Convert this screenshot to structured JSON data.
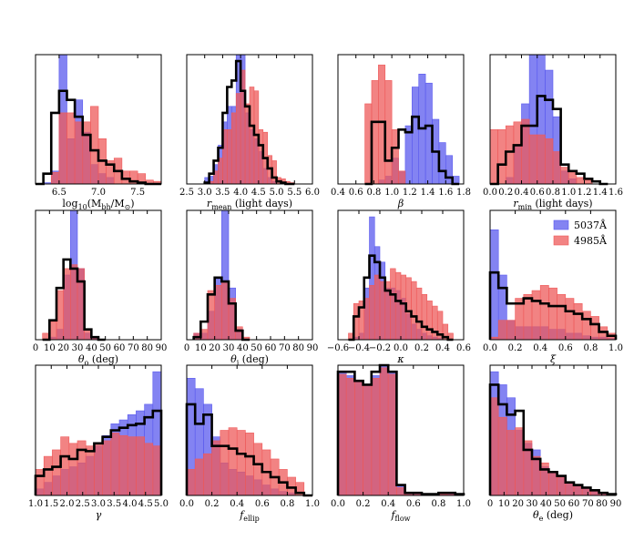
{
  "colors": {
    "series_a": "#5a5aee",
    "series_b": "#ee5a5a",
    "step": "#000000",
    "frame": "#000000"
  },
  "legend": {
    "entries": [
      {
        "name": "5037Å",
        "color": "#5a5aee"
      },
      {
        "name": "4985Å",
        "color": "#ee5a5a"
      }
    ],
    "placement": "top-right of r_min ... in row 2, column 4 panel"
  },
  "chart_data": [
    {
      "type": "bar",
      "id": "mbh",
      "xlabel_main": "log",
      "xlabel_sub": "10",
      "xlabel_rest": "(M",
      "xlabel_sub2": "bh",
      "xlabel_rest2": "/M",
      "xlabel_sub3": "⊙",
      "xlabel_end": ")",
      "xlim": [
        6.2,
        7.8
      ],
      "ticks": [
        6.5,
        7.0,
        7.5
      ],
      "tick_labels": [
        "6.5",
        "7.0",
        "7.5"
      ],
      "bin_edges": [
        6.2,
        6.3,
        6.4,
        6.5,
        6.6,
        6.7,
        6.8,
        6.9,
        7.0,
        7.1,
        7.2,
        7.3,
        7.4,
        7.5,
        7.6,
        7.7,
        7.8
      ],
      "series": [
        {
          "name": "5037Å",
          "values": [
            0,
            1,
            10,
            100,
            35,
            65,
            40,
            15,
            8,
            5,
            0,
            0,
            0,
            0,
            0,
            0
          ]
        },
        {
          "name": "4985Å",
          "values": [
            0,
            0,
            9,
            55,
            55,
            48,
            48,
            60,
            35,
            18,
            20,
            10,
            10,
            8,
            3,
            2
          ]
        }
      ],
      "step": [
        0,
        8,
        55,
        72,
        65,
        52,
        38,
        26,
        18,
        15,
        10,
        4,
        2,
        1,
        0,
        0
      ]
    },
    {
      "type": "bar",
      "id": "rmean",
      "xlabel_main": "r",
      "xlabel_sub": "mean",
      "xlabel_rest": " (light days)",
      "xlim": [
        2.5,
        6.0
      ],
      "ticks": [
        2.5,
        3.0,
        3.5,
        4.0,
        4.5,
        5.0,
        5.5,
        6.0
      ],
      "tick_labels": [
        "2.5",
        "3.0",
        "3.5",
        "4.0",
        "4.5",
        "5.0",
        "5.5",
        "6.0"
      ],
      "bin_edges": [
        3.0,
        3.125,
        3.25,
        3.375,
        3.5,
        3.625,
        3.75,
        3.875,
        4.0,
        4.125,
        4.25,
        4.375,
        4.5,
        4.625,
        4.75,
        4.875,
        5.0,
        5.125,
        5.25,
        5.375,
        5.5
      ],
      "series": [
        {
          "name": "5037Å",
          "values": [
            5,
            6,
            15,
            30,
            48,
            60,
            60,
            100,
            100,
            55,
            42,
            35,
            25,
            12,
            5,
            2,
            0,
            0,
            0,
            0
          ]
        },
        {
          "name": "4985Å",
          "values": [
            0,
            2,
            10,
            20,
            42,
            42,
            55,
            70,
            88,
            62,
            75,
            72,
            42,
            40,
            22,
            18,
            5,
            4,
            2,
            1
          ]
        }
      ],
      "step": [
        1,
        8,
        18,
        28,
        55,
        75,
        80,
        95,
        72,
        60,
        45,
        38,
        30,
        20,
        12,
        5,
        2,
        1,
        0,
        0
      ]
    },
    {
      "type": "bar",
      "id": "beta",
      "xlabel_main": "β",
      "xlim": [
        0.4,
        1.8
      ],
      "ticks": [
        0.4,
        0.6,
        0.8,
        1.0,
        1.2,
        1.4,
        1.6,
        1.8
      ],
      "tick_labels": [
        "0.4",
        "0.6",
        "0.8",
        "1.0",
        "1.2",
        "1.4",
        "1.6",
        "1.8"
      ],
      "bin_edges": [
        0.7,
        0.775,
        0.85,
        0.925,
        1.0,
        1.075,
        1.15,
        1.225,
        1.3,
        1.375,
        1.45,
        1.525,
        1.6,
        1.675,
        1.75
      ],
      "series": [
        {
          "name": "5037Å",
          "values": [
            0,
            0,
            3,
            6,
            20,
            10,
            45,
            75,
            85,
            78,
            50,
            32,
            22,
            6
          ]
        },
        {
          "name": "4985Å",
          "values": [
            62,
            80,
            92,
            80,
            42,
            10,
            0,
            0,
            0,
            0,
            0,
            0,
            0,
            0
          ]
        }
      ],
      "step": [
        0,
        48,
        48,
        18,
        28,
        42,
        40,
        52,
        43,
        45,
        25,
        10,
        5,
        0
      ]
    },
    {
      "type": "bar",
      "id": "rmin",
      "xlabel_main": "r",
      "xlabel_sub": "min",
      "xlabel_rest": " (light days)",
      "xlim": [
        0.0,
        1.6
      ],
      "ticks": [
        0.0,
        0.2,
        0.4,
        0.6,
        0.8,
        1.0,
        1.2,
        1.4,
        1.6
      ],
      "tick_labels": [
        "0.0",
        "0.2",
        "0.4",
        "0.6",
        "0.8",
        "1.0",
        "1.2",
        "1.4",
        "1.6"
      ],
      "bin_edges": [
        0.0,
        0.1,
        0.2,
        0.3,
        0.4,
        0.5,
        0.6,
        0.7,
        0.8,
        0.9,
        1.0,
        1.1,
        1.2,
        1.3,
        1.4,
        1.5
      ],
      "series": [
        {
          "name": "5037Å",
          "values": [
            0,
            0,
            5,
            30,
            62,
            100,
            100,
            88,
            52,
            10,
            4,
            0,
            0,
            0,
            0
          ]
        },
        {
          "name": "4985Å",
          "values": [
            42,
            42,
            45,
            48,
            50,
            38,
            38,
            35,
            25,
            13,
            10,
            5,
            3,
            0,
            0
          ]
        }
      ],
      "step": [
        0,
        15,
        25,
        30,
        45,
        45,
        68,
        65,
        58,
        15,
        10,
        8,
        4,
        2,
        0
      ]
    },
    {
      "type": "bar",
      "id": "theta_o",
      "xlabel_main": "θ",
      "xlabel_sub": "o",
      "xlabel_rest": " (deg)",
      "xlim": [
        0,
        90
      ],
      "ticks": [
        0,
        10,
        20,
        30,
        40,
        50,
        60,
        70,
        80,
        90
      ],
      "tick_labels": [
        "0",
        "10",
        "20",
        "30",
        "40",
        "50",
        "60",
        "70",
        "80",
        "90"
      ],
      "bin_edges": [
        5,
        10,
        15,
        20,
        25,
        30,
        35,
        40,
        45,
        50
      ],
      "series": [
        {
          "name": "5037Å",
          "values": [
            0,
            2,
            8,
            50,
            100,
            55,
            5,
            1,
            0
          ]
        },
        {
          "name": "4985Å",
          "values": [
            5,
            14,
            38,
            55,
            58,
            55,
            8,
            2,
            0
          ]
        }
      ],
      "step": [
        0,
        15,
        40,
        62,
        55,
        45,
        8,
        2,
        0
      ]
    },
    {
      "type": "bar",
      "id": "theta_i",
      "xlabel_main": "θ",
      "xlabel_sub": "i",
      "xlabel_rest": " (deg)",
      "xlim": [
        0,
        90
      ],
      "ticks": [
        0,
        10,
        20,
        30,
        40,
        50,
        60,
        70,
        80,
        90
      ],
      "tick_labels": [
        "0",
        "10",
        "20",
        "30",
        "40",
        "50",
        "60",
        "70",
        "80",
        "90"
      ],
      "bin_edges": [
        5,
        10,
        15,
        20,
        25,
        30,
        35,
        40,
        45
      ],
      "series": [
        {
          "name": "5037Å",
          "values": [
            5,
            5,
            22,
            48,
            100,
            40,
            8,
            0
          ]
        },
        {
          "name": "4985Å",
          "values": [
            5,
            8,
            38,
            42,
            45,
            32,
            10,
            2
          ]
        }
      ],
      "step": [
        2,
        14,
        35,
        48,
        45,
        28,
        7,
        0
      ]
    },
    {
      "type": "bar",
      "id": "kappa",
      "xlabel_main": "κ",
      "xlim": [
        -0.6,
        0.6
      ],
      "ticks": [
        -0.6,
        -0.4,
        -0.2,
        0.0,
        0.2,
        0.4,
        0.6
      ],
      "tick_labels": [
        "−0.6",
        "−0.4",
        "−0.2",
        "0.0",
        "0.2",
        "0.4",
        "0.6"
      ],
      "bin_edges": [
        -0.5,
        -0.45,
        -0.4,
        -0.35,
        -0.3,
        -0.25,
        -0.2,
        -0.15,
        -0.1,
        -0.05,
        0.0,
        0.05,
        0.1,
        0.15,
        0.2,
        0.25,
        0.3,
        0.35,
        0.4,
        0.45,
        0.5
      ],
      "series": [
        {
          "name": "5037Å",
          "values": [
            0,
            2,
            5,
            40,
            95,
            72,
            60,
            40,
            40,
            38,
            32,
            20,
            12,
            8,
            5,
            3,
            2,
            1,
            0,
            0
          ]
        },
        {
          "name": "4985Å",
          "values": [
            5,
            28,
            30,
            32,
            42,
            50,
            45,
            45,
            55,
            52,
            50,
            48,
            45,
            40,
            35,
            30,
            26,
            22,
            12,
            5
          ]
        }
      ],
      "step": [
        0,
        18,
        25,
        48,
        65,
        60,
        48,
        38,
        35,
        30,
        28,
        22,
        18,
        14,
        10,
        8,
        6,
        4,
        2,
        0
      ]
    },
    {
      "type": "bar",
      "id": "xi",
      "xlabel_main": "ξ",
      "xlim": [
        0.0,
        1.0
      ],
      "ticks": [
        0.0,
        0.2,
        0.4,
        0.6,
        0.8,
        1.0
      ],
      "tick_labels": [
        "0.0",
        "0.2",
        "0.4",
        "0.6",
        "0.8",
        "1.0"
      ],
      "bin_edges": [
        0.0,
        0.0667,
        0.1333,
        0.2,
        0.2667,
        0.3333,
        0.4,
        0.4667,
        0.5333,
        0.6,
        0.6667,
        0.7333,
        0.8,
        0.8667,
        0.9333,
        1.0
      ],
      "series": [
        {
          "name": "5037Å",
          "values": [
            85,
            50,
            15,
            10,
            10,
            10,
            10,
            8,
            8,
            5,
            5,
            3,
            2,
            2,
            1
          ]
        },
        {
          "name": "4985Å",
          "values": [
            2,
            15,
            15,
            32,
            35,
            38,
            42,
            40,
            35,
            32,
            28,
            22,
            18,
            10,
            5
          ]
        }
      ],
      "step": [
        52,
        40,
        28,
        28,
        32,
        30,
        28,
        26,
        26,
        22,
        20,
        16,
        12,
        6,
        3
      ]
    },
    {
      "type": "bar",
      "id": "gamma",
      "xlabel_main": "γ",
      "xlim": [
        1.0,
        5.0
      ],
      "ticks": [
        1.0,
        1.5,
        2.0,
        2.5,
        3.0,
        3.5,
        4.0,
        4.5,
        5.0
      ],
      "tick_labels": [
        "1.0",
        "1.5",
        "2.0",
        "2.5",
        "3.0",
        "3.5",
        "4.0",
        "4.5",
        "5.0"
      ],
      "bin_edges": [
        1.0,
        1.2667,
        1.5333,
        1.8,
        2.0667,
        2.3333,
        2.6,
        2.8667,
        3.1333,
        3.4,
        3.6667,
        3.9333,
        4.2,
        4.4667,
        4.7333,
        5.0
      ],
      "series": [
        {
          "name": "5037Å",
          "values": [
            5,
            10,
            15,
            20,
            22,
            25,
            30,
            38,
            46,
            55,
            58,
            62,
            65,
            70,
            95
          ]
        },
        {
          "name": "4985Å",
          "values": [
            20,
            30,
            35,
            45,
            40,
            42,
            38,
            40,
            42,
            48,
            46,
            45,
            45,
            40,
            38
          ]
        }
      ],
      "step": [
        15,
        20,
        22,
        30,
        28,
        35,
        34,
        40,
        45,
        50,
        52,
        54,
        55,
        60,
        65
      ]
    },
    {
      "type": "bar",
      "id": "fellip",
      "xlabel_main": "f",
      "xlabel_sub": "ellip",
      "xlim": [
        0.0,
        1.0
      ],
      "ticks": [
        0.0,
        0.2,
        0.4,
        0.6,
        0.8,
        1.0
      ],
      "tick_labels": [
        "0.0",
        "0.2",
        "0.4",
        "0.6",
        "0.8",
        "1.0"
      ],
      "bin_edges": [
        0.0,
        0.0667,
        0.1333,
        0.2,
        0.2667,
        0.3333,
        0.4,
        0.4667,
        0.5333,
        0.6,
        0.6667,
        0.7333,
        0.8,
        0.8667,
        0.9333,
        1.0
      ],
      "series": [
        {
          "name": "5037Å",
          "values": [
            90,
            82,
            70,
            45,
            25,
            20,
            18,
            15,
            12,
            8,
            5,
            3,
            2,
            0,
            0
          ]
        },
        {
          "name": "4985Å",
          "values": [
            20,
            28,
            32,
            42,
            50,
            52,
            50,
            48,
            40,
            35,
            28,
            20,
            14,
            10,
            0
          ]
        }
      ],
      "step": [
        70,
        55,
        62,
        38,
        38,
        36,
        32,
        30,
        24,
        18,
        14,
        10,
        6,
        2,
        0
      ]
    },
    {
      "type": "bar",
      "id": "fflow",
      "xlabel_main": "f",
      "xlabel_sub": "flow",
      "xlim": [
        0.0,
        1.0
      ],
      "ticks": [
        0.0,
        0.2,
        0.4,
        0.6,
        0.8,
        1.0
      ],
      "tick_labels": [
        "0.0",
        "0.2",
        "0.4",
        "0.6",
        "0.8",
        "1.0"
      ],
      "bin_edges": [
        0.0,
        0.0667,
        0.1333,
        0.2,
        0.2667,
        0.3333,
        0.4,
        0.4667,
        0.5333,
        0.6,
        0.6667,
        0.7333,
        0.8,
        0.8667,
        0.9333,
        1.0
      ],
      "series": [
        {
          "name": "5037Å",
          "values": [
            95,
            92,
            88,
            85,
            92,
            100,
            95,
            8,
            2,
            2,
            1,
            1,
            1,
            1,
            1
          ]
        },
        {
          "name": "4985Å",
          "values": [
            93,
            90,
            88,
            85,
            90,
            98,
            93,
            6,
            2,
            2,
            1,
            1,
            1,
            2,
            1
          ]
        }
      ],
      "step": [
        95,
        95,
        88,
        85,
        95,
        100,
        95,
        8,
        2,
        2,
        1,
        1,
        2,
        2,
        1
      ]
    },
    {
      "type": "bar",
      "id": "theta_e",
      "xlabel_main": "θ",
      "xlabel_sub": "e",
      "xlabel_rest": " (deg)",
      "xlim": [
        0,
        90
      ],
      "ticks": [
        0,
        10,
        20,
        30,
        40,
        50,
        60,
        70,
        80,
        90
      ],
      "tick_labels": [
        "0",
        "10",
        "20",
        "30",
        "40",
        "50",
        "60",
        "70",
        "80",
        "90"
      ],
      "bin_edges": [
        0,
        6,
        12,
        18,
        24,
        30,
        36,
        42,
        48,
        54,
        60,
        66,
        72,
        78,
        84,
        90
      ],
      "series": [
        {
          "name": "5037Å",
          "values": [
            95,
            85,
            75,
            50,
            40,
            35,
            22,
            18,
            15,
            10,
            8,
            6,
            4,
            2,
            1
          ]
        },
        {
          "name": "4985Å",
          "values": [
            75,
            60,
            50,
            52,
            42,
            30,
            25,
            18,
            14,
            10,
            8,
            6,
            4,
            2,
            1
          ]
        }
      ],
      "step": [
        85,
        70,
        62,
        65,
        35,
        28,
        20,
        18,
        15,
        10,
        8,
        6,
        4,
        2,
        1
      ]
    }
  ]
}
